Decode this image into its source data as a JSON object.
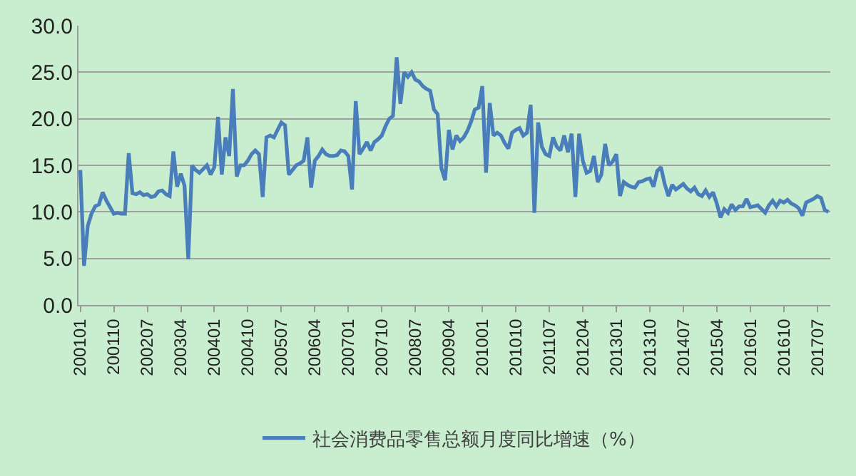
{
  "chart_data": {
    "type": "line",
    "categories": [
      "200101",
      null,
      null,
      null,
      null,
      null,
      null,
      null,
      null,
      "200110",
      null,
      null,
      null,
      null,
      null,
      null,
      null,
      null,
      "200207",
      null,
      null,
      null,
      null,
      null,
      null,
      null,
      null,
      "200304",
      null,
      null,
      null,
      null,
      null,
      null,
      null,
      null,
      "200401",
      null,
      null,
      null,
      null,
      null,
      null,
      null,
      null,
      "200410",
      null,
      null,
      null,
      null,
      null,
      null,
      null,
      null,
      "200507",
      null,
      null,
      null,
      null,
      null,
      null,
      null,
      null,
      "200604",
      null,
      null,
      null,
      null,
      null,
      null,
      null,
      null,
      "200701",
      null,
      null,
      null,
      null,
      null,
      null,
      null,
      null,
      "200710",
      null,
      null,
      null,
      null,
      null,
      null,
      null,
      null,
      "200807",
      null,
      null,
      null,
      null,
      null,
      null,
      null,
      null,
      "200904",
      null,
      null,
      null,
      null,
      null,
      null,
      null,
      null,
      "201001",
      null,
      null,
      null,
      null,
      null,
      null,
      null,
      null,
      "201010",
      null,
      null,
      null,
      null,
      null,
      null,
      null,
      null,
      "201107",
      null,
      null,
      null,
      null,
      null,
      null,
      null,
      null,
      "201204",
      null,
      null,
      null,
      null,
      null,
      null,
      null,
      null,
      "201301",
      null,
      null,
      null,
      null,
      null,
      null,
      null,
      null,
      "201310",
      null,
      null,
      null,
      null,
      null,
      null,
      null,
      null,
      "201407",
      null,
      null,
      null,
      null,
      null,
      null,
      null,
      null,
      "201504",
      null,
      null,
      null,
      null,
      null,
      null,
      null,
      null,
      "201601",
      null,
      null,
      null,
      null,
      null,
      null,
      null,
      null,
      "201610",
      null,
      null,
      null,
      null,
      null,
      null,
      null,
      null,
      "201707",
      null,
      null,
      null
    ],
    "series": [
      {
        "name": "社会消费品零售总额月度同比增速（%）",
        "color": "#4a7ebb",
        "values": [
          14.5,
          4.2,
          8.5,
          9.8,
          10.6,
          10.8,
          12.1,
          11.2,
          10.5,
          9.8,
          9.9,
          9.8,
          9.8,
          16.3,
          12.0,
          11.9,
          12.1,
          11.8,
          11.9,
          11.6,
          11.7,
          12.2,
          12.3,
          11.9,
          11.7,
          16.5,
          12.7,
          14.1,
          12.8,
          4.9,
          15.0,
          14.5,
          14.2,
          14.6,
          15.0,
          14.0,
          14.8,
          20.2,
          14.0,
          18.0,
          16.0,
          23.2,
          13.8,
          15.0,
          15.0,
          15.5,
          16.2,
          16.6,
          16.2,
          11.6,
          18.0,
          18.2,
          18.0,
          18.8,
          19.6,
          19.3,
          14.0,
          14.5,
          15.0,
          15.2,
          15.5,
          18.0,
          12.6,
          15.5,
          16.0,
          16.7,
          16.2,
          16.0,
          16.0,
          16.1,
          16.6,
          16.5,
          16.0,
          12.4,
          21.9,
          16.2,
          16.8,
          17.5,
          16.6,
          17.5,
          17.8,
          18.2,
          19.2,
          20.0,
          20.3,
          26.6,
          21.6,
          25.0,
          24.5,
          25.0,
          24.2,
          24.0,
          23.5,
          23.2,
          23.0,
          21.0,
          20.5,
          14.7,
          13.4,
          18.8,
          16.7,
          18.2,
          17.6,
          18.0,
          18.7,
          19.7,
          21.0,
          21.2,
          23.5,
          14.2,
          21.7,
          18.2,
          18.5,
          18.2,
          17.4,
          16.8,
          18.5,
          18.8,
          19.0,
          18.2,
          18.5,
          21.5,
          9.9,
          19.6,
          17.0,
          16.2,
          16.0,
          18.0,
          17.0,
          16.6,
          18.2,
          16.4,
          18.4,
          11.6,
          18.4,
          15.5,
          14.2,
          14.4,
          16.0,
          13.2,
          14.0,
          17.3,
          15.0,
          15.4,
          16.2,
          11.7,
          13.2,
          12.9,
          12.7,
          12.6,
          13.2,
          13.3,
          13.5,
          13.6,
          12.7,
          14.4,
          14.8,
          13.0,
          11.7,
          12.9,
          12.4,
          12.7,
          13.0,
          12.5,
          12.2,
          12.6,
          11.9,
          11.7,
          12.3,
          11.6,
          12.1,
          10.9,
          9.4,
          10.3,
          9.9,
          10.8,
          10.2,
          10.6,
          10.6,
          11.4,
          10.5,
          10.6,
          10.7,
          10.3,
          9.9,
          10.7,
          11.2,
          10.6,
          11.2,
          11.0,
          11.3,
          10.9,
          10.7,
          10.4,
          9.6,
          11.0,
          11.2,
          11.4,
          11.7,
          11.5,
          10.2,
          10.0
        ]
      }
    ],
    "ylim": [
      0,
      30
    ],
    "yticks": [
      {
        "value": 0,
        "label": "0.0"
      },
      {
        "value": 5,
        "label": "5.0"
      },
      {
        "value": 10,
        "label": "10.0"
      },
      {
        "value": 15,
        "label": "15.0"
      },
      {
        "value": 20,
        "label": "20.0"
      },
      {
        "value": 25,
        "label": "25.0"
      },
      {
        "value": 30,
        "label": "30.0"
      }
    ],
    "grid": "y",
    "legend": "bottom",
    "marker": "none",
    "line_style": "solid"
  }
}
